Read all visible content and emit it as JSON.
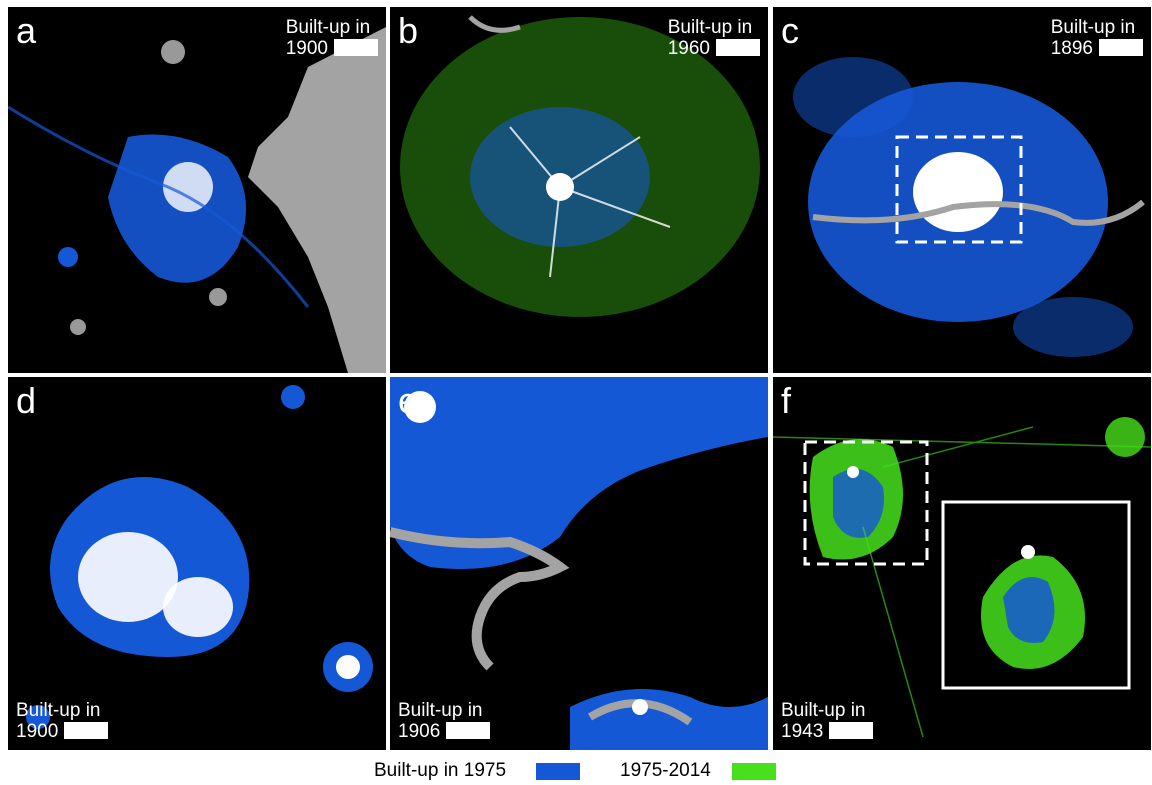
{
  "colors": {
    "built_1975": "#1558d6",
    "built_1975_2014": "#47e01c",
    "historic": "#ffffff",
    "water": "#a3a3a3",
    "background": "#000000"
  },
  "panels": [
    {
      "letter": "a",
      "label_line1": "Built-up in",
      "label_line2": "1900"
    },
    {
      "letter": "b",
      "label_line1": "Built-up in",
      "label_line2": "1960"
    },
    {
      "letter": "c",
      "label_line1": "Built-up in",
      "label_line2": "1896"
    },
    {
      "letter": "d",
      "label_line1": "Built-up in",
      "label_line2": "1900"
    },
    {
      "letter": "e",
      "label_line1": "Built-up in",
      "label_line2": "1906"
    },
    {
      "letter": "f",
      "label_line1": "Built-up in",
      "label_line2": "1943"
    }
  ],
  "legend": {
    "item1": "Built-up in 1975",
    "item2": "1975-2014"
  }
}
